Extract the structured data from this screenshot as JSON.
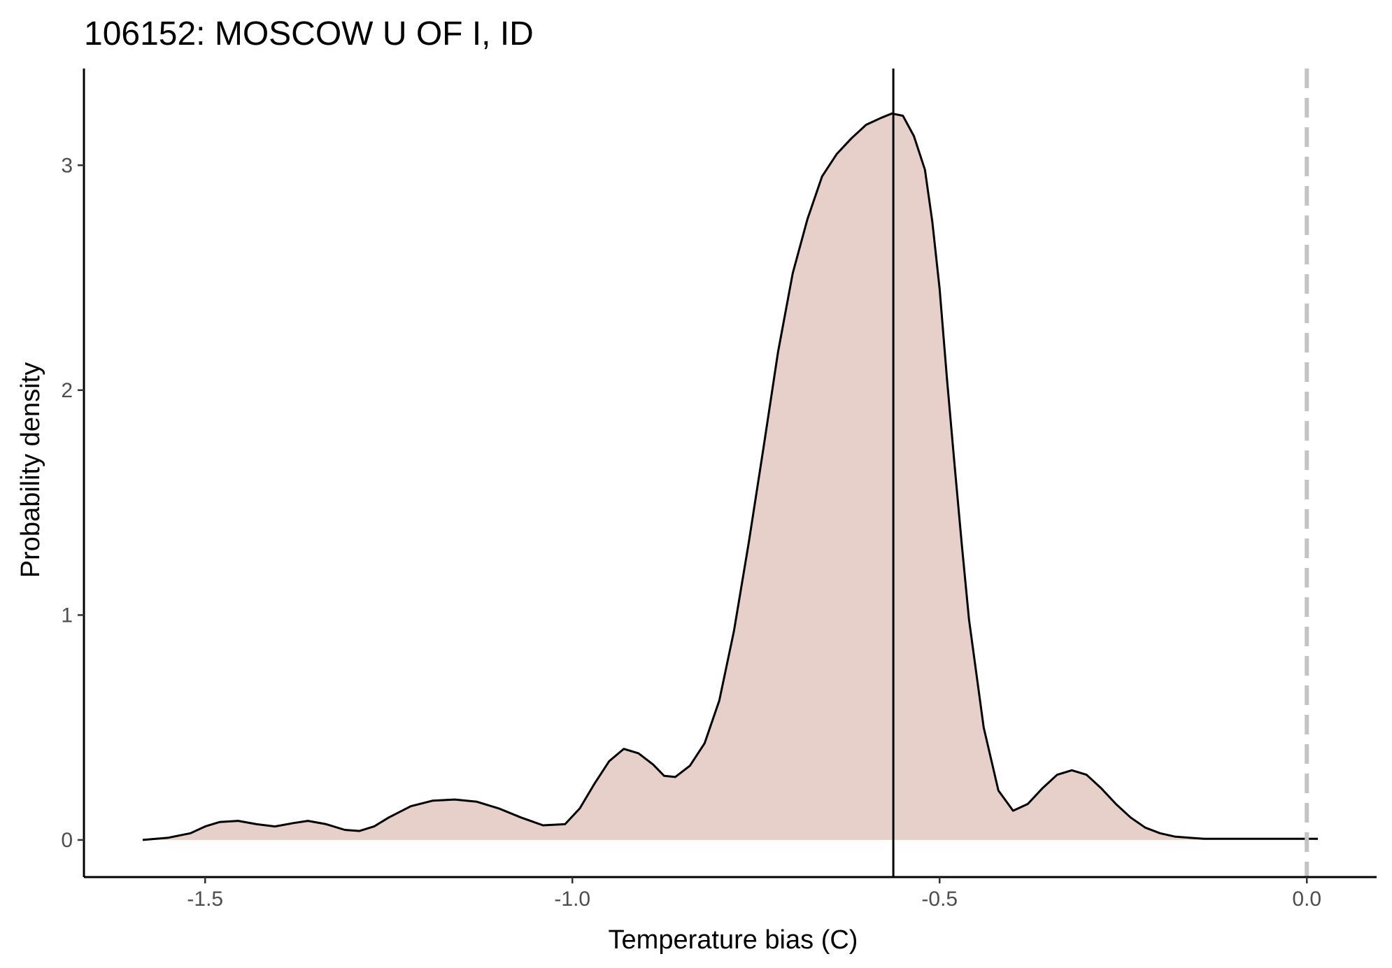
{
  "chart_data": {
    "type": "area",
    "title": "106152: MOSCOW U OF I, ID",
    "xlabel": "Temperature bias (C)",
    "ylabel": "Probability density",
    "xlim": [
      -1.665,
      0.095
    ],
    "ylim": [
      -0.165,
      3.43
    ],
    "x_ticks": [
      -1.5,
      -1.0,
      -0.5,
      0.0
    ],
    "x_tick_labels": [
      "-1.5",
      "-1.0",
      "-0.5",
      "0.0"
    ],
    "y_ticks": [
      0,
      1,
      2,
      3
    ],
    "y_tick_labels": [
      "0",
      "1",
      "2",
      "3"
    ],
    "grid": false,
    "legend": "none",
    "fill_color": "#e8d0ca",
    "line_color": "#000000",
    "series": [
      {
        "x": [
          -1.585,
          -1.55,
          -1.52,
          -1.5,
          -1.48,
          -1.455,
          -1.43,
          -1.405,
          -1.38,
          -1.36,
          -1.335,
          -1.31,
          -1.29,
          -1.27,
          -1.25,
          -1.22,
          -1.19,
          -1.16,
          -1.13,
          -1.1,
          -1.07,
          -1.04,
          -1.01,
          -0.99,
          -0.97,
          -0.95,
          -0.93,
          -0.91,
          -0.89,
          -0.875,
          -0.86,
          -0.84,
          -0.82,
          -0.8,
          -0.78,
          -0.76,
          -0.74,
          -0.72,
          -0.7,
          -0.68,
          -0.66,
          -0.64,
          -0.62,
          -0.6,
          -0.58,
          -0.565,
          -0.55,
          -0.535,
          -0.52,
          -0.51,
          -0.5,
          -0.49,
          -0.48,
          -0.47,
          -0.46,
          -0.44,
          -0.42,
          -0.4,
          -0.38,
          -0.36,
          -0.34,
          -0.32,
          -0.3,
          -0.28,
          -0.26,
          -0.24,
          -0.22,
          -0.2,
          -0.18,
          -0.16,
          -0.14,
          -0.12,
          -0.1,
          -0.08,
          -0.06,
          -0.04,
          -0.02,
          0.0,
          0.015
        ],
        "y": [
          0.0,
          0.01,
          0.03,
          0.06,
          0.08,
          0.085,
          0.07,
          0.06,
          0.075,
          0.085,
          0.07,
          0.045,
          0.04,
          0.06,
          0.1,
          0.15,
          0.175,
          0.18,
          0.17,
          0.14,
          0.1,
          0.065,
          0.07,
          0.14,
          0.25,
          0.35,
          0.405,
          0.385,
          0.335,
          0.285,
          0.28,
          0.33,
          0.43,
          0.62,
          0.93,
          1.32,
          1.74,
          2.17,
          2.52,
          2.76,
          2.95,
          3.05,
          3.12,
          3.18,
          3.21,
          3.23,
          3.22,
          3.13,
          2.98,
          2.75,
          2.45,
          2.05,
          1.68,
          1.32,
          0.98,
          0.5,
          0.22,
          0.13,
          0.16,
          0.23,
          0.29,
          0.31,
          0.29,
          0.23,
          0.16,
          0.1,
          0.055,
          0.03,
          0.015,
          0.01,
          0.005,
          0.005,
          0.005,
          0.005,
          0.005,
          0.005,
          0.005,
          0.005,
          0.005
        ]
      }
    ],
    "vlines": [
      {
        "x": -0.563,
        "style": "solid",
        "color": "#000000"
      },
      {
        "x": 0.0,
        "style": "dashed",
        "color": "#c4c4c4"
      }
    ]
  }
}
